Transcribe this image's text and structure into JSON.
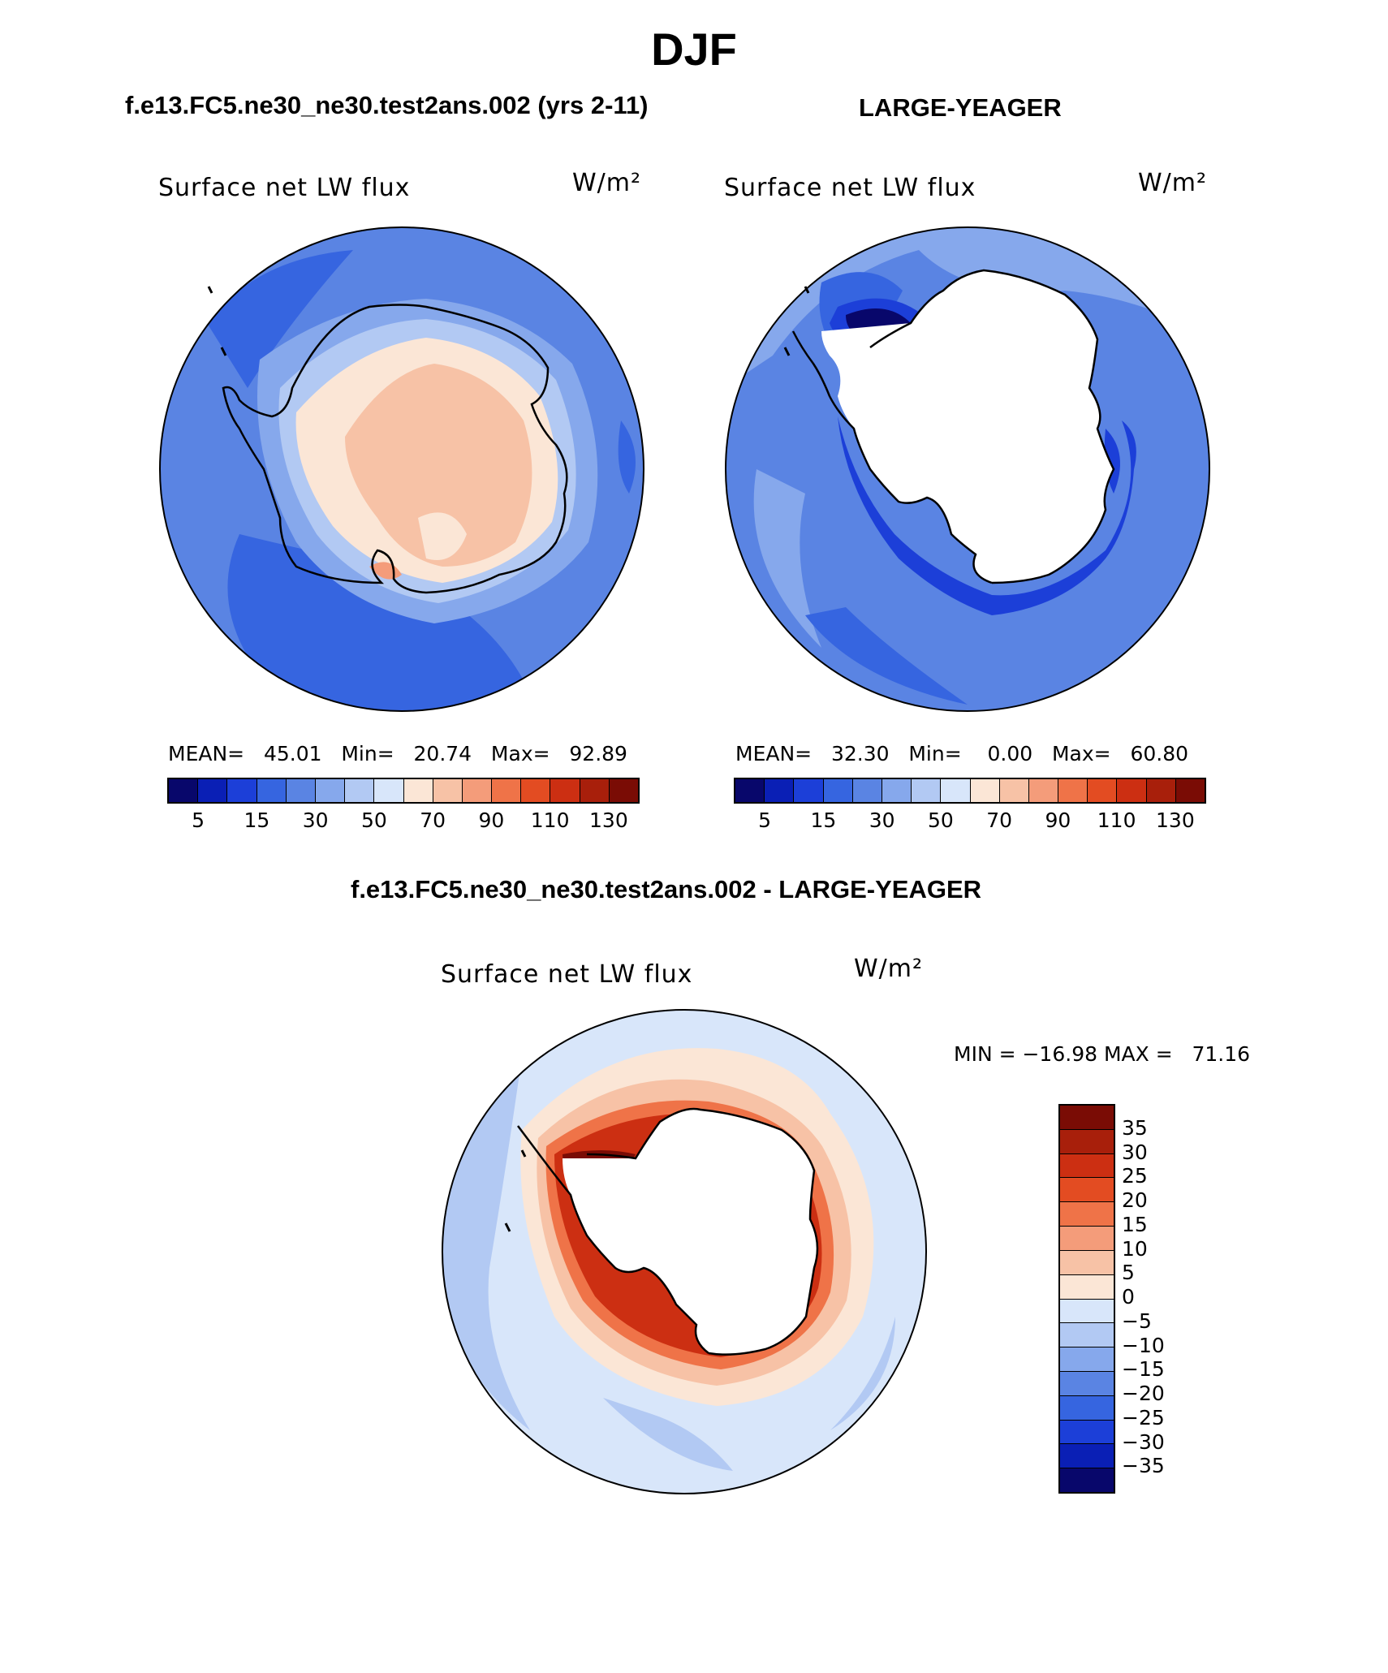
{
  "page": {
    "title": "DJF",
    "left_title": "f.e13.FC5.ne30_ne30.test2ans.002 (yrs 2-11)",
    "right_title": "LARGE-YEAGER",
    "diff_title": "f.e13.FC5.ne30_ne30.test2ans.002 - LARGE-YEAGER"
  },
  "panels": {
    "left": {
      "variable": "Surface net LW flux",
      "units": "W/m²",
      "stats": "MEAN=   45.01   Min=   20.74   Max=   92.89"
    },
    "right": {
      "variable": "Surface net LW flux",
      "units": "W/m²",
      "stats": "MEAN=   32.30   Min=    0.00   Max=   60.80"
    },
    "diff": {
      "variable": "Surface net LW flux",
      "units": "W/m²",
      "stats": "MIN = −16.98 MAX =   71.16"
    }
  },
  "colorbars": {
    "abs": {
      "tick_labels": [
        "5",
        "15",
        "30",
        "50",
        "70",
        "90",
        "110",
        "130"
      ],
      "colors": [
        "#08076b",
        "#0a1fb5",
        "#1c3fd8",
        "#3665e0",
        "#5a84e3",
        "#86a8ec",
        "#b2c9f3",
        "#d8e6fa",
        "#fbe6d6",
        "#f7c2a6",
        "#f49c7a",
        "#ef7348",
        "#e34c22",
        "#cc2f12",
        "#a81f0b",
        "#7a0c05"
      ]
    },
    "diff": {
      "tick_labels": [
        "35",
        "30",
        "25",
        "20",
        "15",
        "10",
        "5",
        "0",
        "−5",
        "−10",
        "−15",
        "−20",
        "−25",
        "−30",
        "−35"
      ],
      "colors": [
        "#7a0c05",
        "#a81f0b",
        "#cc2f12",
        "#e34c22",
        "#ef7348",
        "#f49c7a",
        "#f7c2a6",
        "#fbe6d6",
        "#d8e6fa",
        "#b2c9f3",
        "#86a8ec",
        "#5a84e3",
        "#3665e0",
        "#1c3fd8",
        "#0a1fb5",
        "#08076b"
      ]
    }
  }
}
